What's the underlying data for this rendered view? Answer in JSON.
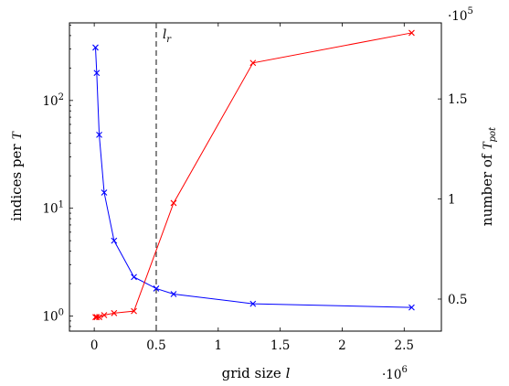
{
  "chart_data": {
    "type": "line",
    "xlabel_text": "grid size ",
    "xlabel_var": "l",
    "ylabel_left_text": "indices per ",
    "ylabel_left_var": "T",
    "ylabel_right_text": "number of ",
    "ylabel_right_var": "T",
    "ylabel_right_sub": "pot",
    "x_multiplier_base": "·10",
    "x_multiplier_exp": "6",
    "y_right_multiplier_base": "·10",
    "y_right_multiplier_exp": "5",
    "xlim": [
      -0.2,
      2.8
    ],
    "x_ticks": [
      0,
      0.5,
      1,
      1.5,
      2,
      2.5
    ],
    "x_tick_labels": [
      "0",
      "0.5",
      "1",
      "1.5",
      "2",
      "2.5"
    ],
    "ylim_left_log10": [
      -0.14,
      2.72
    ],
    "y_left_scale": "log",
    "y_left_ticks_log10": [
      0,
      1,
      2
    ],
    "y_left_tick_labels": [
      {
        "base": "10",
        "exp": "0"
      },
      {
        "base": "10",
        "exp": "1"
      },
      {
        "base": "10",
        "exp": "2"
      }
    ],
    "ylim_right": [
      0.34,
      1.88
    ],
    "y_right_ticks": [
      0.5,
      1,
      1.5
    ],
    "y_right_tick_labels": [
      "0.5",
      "1",
      "1.5"
    ],
    "vline": {
      "x": 0.5,
      "label_var": "l",
      "label_sub": "r",
      "style": "dashed"
    },
    "series": [
      {
        "axis": "left",
        "color": "#0000ff",
        "marker": "x",
        "x": [
          0.01,
          0.02,
          0.04,
          0.08,
          0.16,
          0.32,
          0.5,
          0.64,
          1.28,
          2.56
        ],
        "y": [
          310,
          180,
          48,
          14,
          5,
          2.3,
          1.8,
          1.6,
          1.3,
          1.2
        ]
      },
      {
        "axis": "right",
        "color": "#ff0000",
        "marker": "x",
        "x": [
          0.01,
          0.02,
          0.04,
          0.08,
          0.16,
          0.32,
          0.64,
          1.28,
          2.56
        ],
        "y": [
          0.41,
          0.41,
          0.41,
          0.42,
          0.43,
          0.44,
          0.98,
          1.68,
          1.83
        ]
      }
    ],
    "grid": false
  }
}
